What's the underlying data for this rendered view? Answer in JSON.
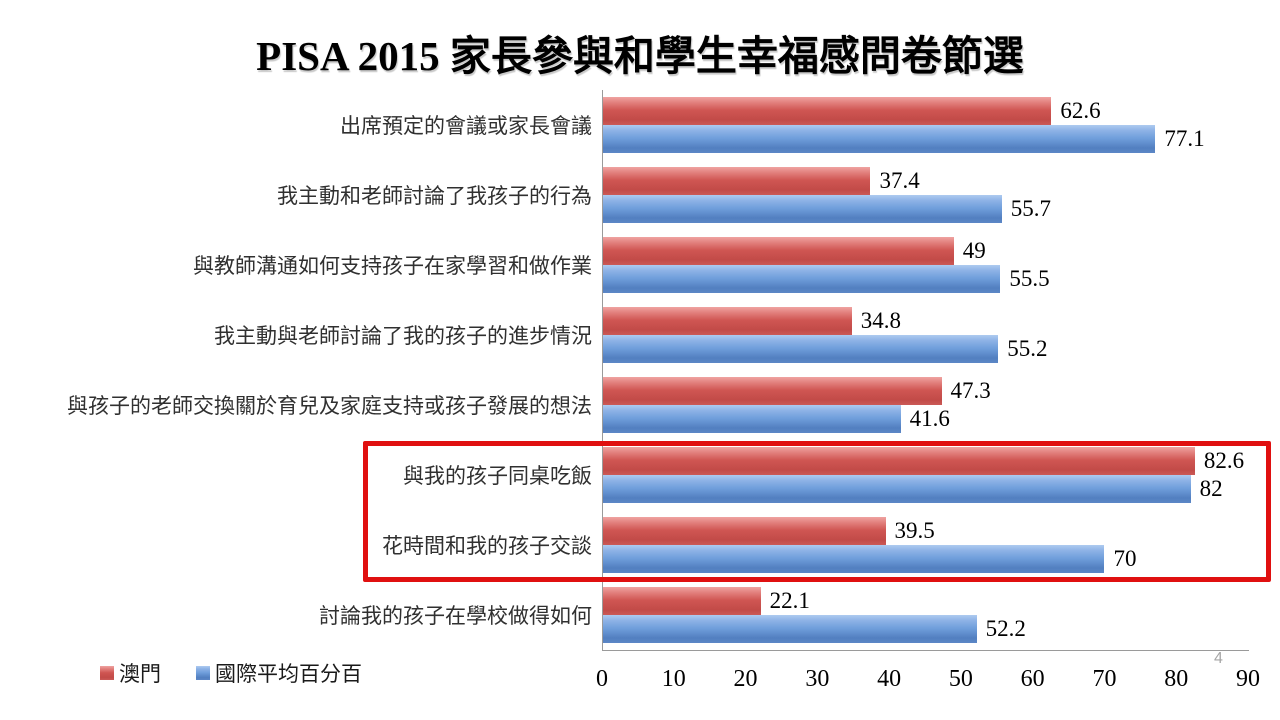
{
  "title": "PISA 2015 家長參與和學生幸福感問卷節選",
  "page_number": "4",
  "legend": {
    "macau": {
      "label": "澳門",
      "color": "#C0504D"
    },
    "intl": {
      "label": "國際平均百分百",
      "color": "#4F81BD"
    }
  },
  "chart_data": {
    "type": "bar",
    "orientation": "horizontal",
    "title": "PISA 2015 家長參與和學生幸福感問卷節選",
    "xlabel": "",
    "ylabel": "",
    "xlim": [
      0,
      90
    ],
    "x_ticks": [
      "0",
      "10",
      "20",
      "30",
      "40",
      "50",
      "60",
      "70",
      "80",
      "90"
    ],
    "grid": false,
    "legend_position": "bottom-left",
    "categories": [
      "出席預定的會議或家長會議",
      "我主動和老師討論了我孩子的行為",
      "與教師溝通如何支持孩子在家學習和做作業",
      "我主動與老師討論了我的孩子的進步情況",
      "與孩子的老師交換關於育兒及家庭支持或孩子發展的想法",
      "與我的孩子同桌吃飯",
      "花時間和我的孩子交談",
      "討論我的孩子在學校做得如何"
    ],
    "series": [
      {
        "name": "澳門",
        "color": "#C0504D",
        "values": [
          62.6,
          37.4,
          49,
          34.8,
          47.3,
          82.6,
          39.5,
          22.1
        ],
        "labels": [
          "62.6",
          "37.4",
          "49",
          "34.8",
          "47.3",
          "82.6",
          "39.5",
          "22.1"
        ]
      },
      {
        "name": "國際平均百分百",
        "color": "#4F81BD",
        "values": [
          77.1,
          55.7,
          55.5,
          55.2,
          41.6,
          82,
          70,
          52.2
        ],
        "labels": [
          "77.1",
          "55.7",
          "55.5",
          "55.2",
          "41.6",
          "82",
          "70",
          "52.2"
        ]
      }
    ],
    "highlight_box": {
      "categories": [
        "與我的孩子同桌吃飯",
        "花時間和我的孩子交談"
      ],
      "color": "#E01010"
    }
  }
}
